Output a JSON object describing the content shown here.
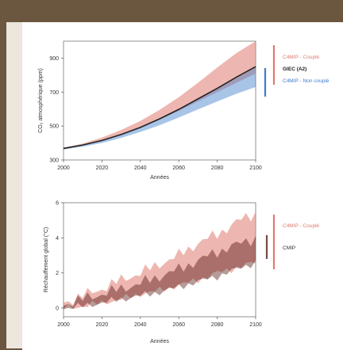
{
  "colors": {
    "background": "#6b5640",
    "coupled": "#e07a70",
    "non_coupled": "#3d7cc9",
    "giec": "#222222",
    "cmip": "#7a4a45"
  },
  "chart_data": [
    {
      "type": "area",
      "title": "",
      "xlabel": "Années",
      "ylabel": "CO₂ atmosphérique (ppm)",
      "xlim": [
        2000,
        2100
      ],
      "ylim": [
        300,
        1000
      ],
      "x_ticks": [
        2000,
        2020,
        2040,
        2060,
        2080,
        2100
      ],
      "y_ticks": [
        300,
        500,
        700,
        900
      ],
      "legend_position": "right",
      "x": [
        2000,
        2010,
        2020,
        2030,
        2040,
        2050,
        2060,
        2070,
        2080,
        2090,
        2100
      ],
      "series": [
        {
          "name": "C4MIP - Couplé",
          "kind": "band",
          "color": "#e07a70",
          "low": [
            365,
            385,
            412,
            448,
            490,
            538,
            590,
            645,
            700,
            755,
            810
          ],
          "high": [
            372,
            397,
            432,
            477,
            530,
            595,
            670,
            755,
            845,
            930,
            1000
          ]
        },
        {
          "name": "C4MIP - Non couplé",
          "kind": "band",
          "color": "#3d7cc9",
          "low": [
            362,
            378,
            400,
            430,
            465,
            505,
            550,
            598,
            645,
            690,
            730
          ],
          "high": [
            368,
            388,
            416,
            452,
            495,
            545,
            600,
            660,
            720,
            782,
            845
          ]
        },
        {
          "name": "GIEC (A2)",
          "kind": "line",
          "color": "#222222",
          "values": [
            368,
            388,
            415,
            450,
            492,
            542,
            598,
            660,
            722,
            788,
            850
          ]
        }
      ],
      "legend": [
        {
          "label": "C4MIP - Couplé",
          "color": "#e07a70"
        },
        {
          "label": "GIEC (A2)",
          "color": "#222222"
        },
        {
          "label": "C4MIP - Non couplé",
          "color": "#3d7cc9"
        }
      ]
    },
    {
      "type": "area",
      "title": "",
      "xlabel": "Années",
      "ylabel": "Réchauffement global (°C)",
      "xlim": [
        2000,
        2100
      ],
      "ylim": [
        -0.5,
        6
      ],
      "x_ticks": [
        2000,
        2020,
        2040,
        2060,
        2080,
        2100
      ],
      "y_ticks": [
        0,
        2,
        4,
        6
      ],
      "legend_position": "right",
      "x": [
        2000,
        2010,
        2020,
        2030,
        2040,
        2050,
        2060,
        2070,
        2080,
        2090,
        2100
      ],
      "series": [
        {
          "name": "C4MIP - Couplé",
          "kind": "band",
          "color": "#e07a70",
          "low": [
            0.0,
            0.1,
            0.3,
            0.5,
            0.8,
            1.0,
            1.3,
            1.6,
            2.0,
            2.3,
            2.6
          ],
          "high": [
            0.3,
            0.7,
            1.1,
            1.6,
            2.0,
            2.5,
            3.0,
            3.7,
            4.2,
            4.9,
            5.4
          ]
        },
        {
          "name": "CMIP",
          "kind": "band",
          "color": "#7a4a45",
          "low": [
            0.0,
            0.1,
            0.3,
            0.5,
            0.7,
            0.9,
            1.2,
            1.5,
            1.8,
            2.2,
            2.6
          ],
          "high": [
            0.2,
            0.5,
            0.8,
            1.1,
            1.4,
            1.8,
            2.2,
            2.7,
            3.2,
            3.6,
            4.0
          ]
        }
      ],
      "legend": [
        {
          "label": "C4MIP - Couplé",
          "color": "#e07a70"
        },
        {
          "label": "CMIP",
          "color": "#7a4a45"
        }
      ]
    }
  ]
}
